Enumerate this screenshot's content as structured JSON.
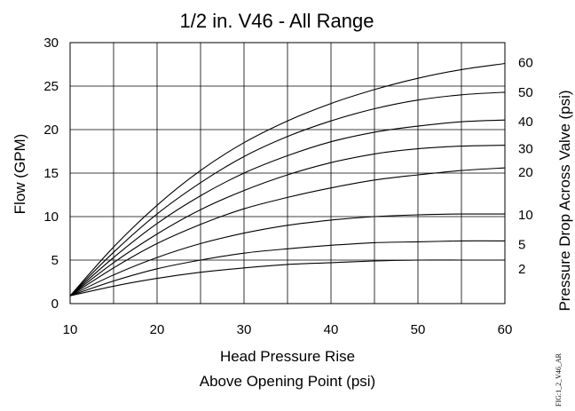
{
  "chart_data": {
    "type": "line",
    "title": "1/2 in. V46 - All Range",
    "xlabel_line1": "Head Pressure Rise",
    "xlabel_line2": "Above Opening Point (psi)",
    "ylabel": "Flow (GPM)",
    "y2label": "Pressure Drop Across Valve (psi)",
    "xlim": [
      10,
      60
    ],
    "ylim": [
      0,
      30
    ],
    "xticks": [
      10,
      20,
      30,
      40,
      50,
      60
    ],
    "yticks": [
      0,
      5,
      10,
      15,
      20,
      25,
      30
    ],
    "grid": true,
    "series": [
      {
        "name": "60",
        "x": [
          10,
          15,
          20,
          25,
          30,
          35,
          40,
          45,
          50,
          55,
          60
        ],
        "y": [
          0.9,
          6.5,
          11.3,
          15.3,
          18.5,
          21.0,
          23.0,
          24.6,
          25.9,
          26.9,
          27.6
        ]
      },
      {
        "name": "50",
        "x": [
          10,
          15,
          20,
          25,
          30,
          35,
          40,
          45,
          50,
          55,
          60
        ],
        "y": [
          0.9,
          5.9,
          10.3,
          13.9,
          16.9,
          19.2,
          21.0,
          22.4,
          23.4,
          24.0,
          24.3
        ]
      },
      {
        "name": "40",
        "x": [
          10,
          15,
          20,
          25,
          30,
          35,
          40,
          45,
          50,
          55,
          60
        ],
        "y": [
          0.9,
          5.3,
          9.2,
          12.4,
          15.0,
          17.0,
          18.6,
          19.7,
          20.4,
          20.9,
          21.1
        ]
      },
      {
        "name": "30",
        "x": [
          10,
          15,
          20,
          25,
          30,
          35,
          40,
          45,
          50,
          55,
          60
        ],
        "y": [
          0.9,
          4.7,
          8.0,
          10.8,
          13.0,
          14.8,
          16.2,
          17.2,
          17.8,
          18.1,
          18.2
        ]
      },
      {
        "name": "20",
        "x": [
          10,
          15,
          20,
          25,
          30,
          35,
          40,
          45,
          50,
          55,
          60
        ],
        "y": [
          0.9,
          4.1,
          6.9,
          9.1,
          10.9,
          12.2,
          13.3,
          14.2,
          14.8,
          15.3,
          15.6
        ]
      },
      {
        "name": "10",
        "x": [
          10,
          15,
          20,
          25,
          30,
          35,
          40,
          45,
          50,
          55,
          60
        ],
        "y": [
          0.9,
          3.3,
          5.3,
          6.9,
          8.1,
          9.0,
          9.6,
          10.0,
          10.2,
          10.3,
          10.3
        ]
      },
      {
        "name": "5",
        "x": [
          10,
          15,
          20,
          25,
          30,
          35,
          40,
          45,
          50,
          55,
          60
        ],
        "y": [
          0.9,
          2.6,
          4.0,
          5.0,
          5.8,
          6.3,
          6.7,
          7.0,
          7.1,
          7.2,
          7.2
        ]
      },
      {
        "name": "2",
        "x": [
          10,
          15,
          20,
          25,
          30,
          35,
          40,
          45,
          50,
          55,
          60
        ],
        "y": [
          0.9,
          2.0,
          2.9,
          3.6,
          4.1,
          4.5,
          4.7,
          4.9,
          5.0,
          5.0,
          5.0
        ]
      }
    ]
  },
  "figure_id": "FIG:1_2_V46_AR"
}
